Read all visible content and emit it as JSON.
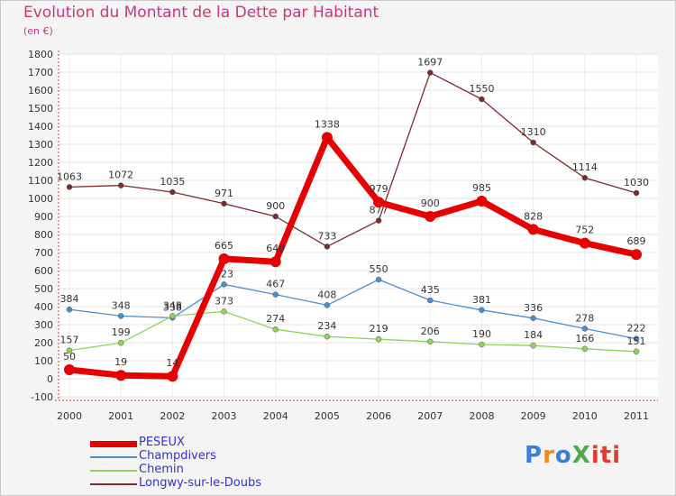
{
  "title": "Evolution du Montant de la Dette par Habitant",
  "subtitle": "(en €)",
  "logo": {
    "text": "ProXiti",
    "colors": [
      "#3a7fd5",
      "#f08a1c",
      "#4fa84f",
      "#e23b2e"
    ]
  },
  "chart_data": {
    "type": "line",
    "title": "Evolution du Montant de la Dette par Habitant",
    "subtitle": "(en €)",
    "x": [
      "2000",
      "2001",
      "2002",
      "2003",
      "2004",
      "2005",
      "2006",
      "2007",
      "2008",
      "2009",
      "2010",
      "2011"
    ],
    "ylim": [
      -100,
      1800
    ],
    "yticks": [
      -100,
      0,
      100,
      200,
      300,
      400,
      500,
      600,
      700,
      800,
      900,
      1000,
      1100,
      1200,
      1300,
      1400,
      1500,
      1600,
      1700,
      1800
    ],
    "grid": true,
    "legend_position": "bottom-left",
    "series": [
      {
        "name": "Longwy-sur-le-Doubs",
        "color": "#7b2b2b",
        "values": [
          1063,
          1072,
          1035,
          971,
          900,
          733,
          877,
          1697,
          1550,
          1310,
          1114,
          1030
        ]
      },
      {
        "name": "Champdivers",
        "color": "#4b8fd0",
        "values": [
          384,
          348,
          338,
          523,
          467,
          408,
          550,
          435,
          381,
          336,
          278,
          222
        ]
      },
      {
        "name": "Chemin",
        "color": "#8fd35a",
        "values": [
          157,
          199,
          348,
          373,
          274,
          234,
          219,
          206,
          190,
          184,
          166,
          151
        ]
      },
      {
        "name": "PESEUX",
        "color": "#e60000",
        "values": [
          50,
          19,
          14,
          665,
          649,
          1338,
          979,
          900,
          985,
          828,
          752,
          689
        ]
      }
    ],
    "legend_order": [
      "PESEUX",
      "Champdivers",
      "Chemin",
      "Longwy-sur-le-Doubs"
    ]
  }
}
